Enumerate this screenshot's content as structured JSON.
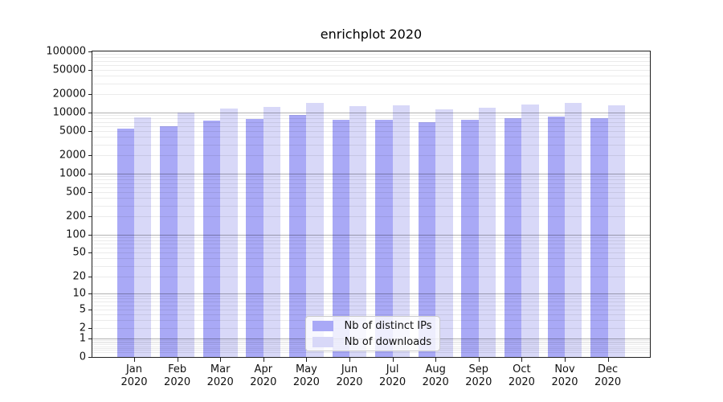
{
  "title": "enrichplot 2020",
  "colors": {
    "distinct_ips_bar": "#a9a9f6",
    "downloads_bar": "#d8d8f8",
    "grid_minor": "rgba(0,0,0,0.08)",
    "grid_major": "rgba(0,0,0,0.30)",
    "spine": "#1f1f1f",
    "legend_border": "#cccccc"
  },
  "legend": {
    "entries": [
      {
        "label": "Nb of distinct IPs",
        "color_key": "distinct_ips_bar"
      },
      {
        "label": "Nb of downloads",
        "color_key": "downloads_bar"
      }
    ]
  },
  "chart_data": {
    "type": "bar",
    "title": "enrichplot 2020",
    "categories": [
      "Jan 2020",
      "Feb 2020",
      "Mar 2020",
      "Apr 2020",
      "May 2020",
      "Jun 2020",
      "Jul 2020",
      "Aug 2020",
      "Sep 2020",
      "Oct 2020",
      "Nov 2020",
      "Dec 2020"
    ],
    "series": [
      {
        "name": "Nb of distinct IPs",
        "values": [
          5400,
          5900,
          7300,
          7850,
          9000,
          7600,
          7700,
          6900,
          7550,
          8200,
          8600,
          8100
        ]
      },
      {
        "name": "Nb of downloads",
        "values": [
          8300,
          9900,
          11500,
          12200,
          14400,
          12700,
          13000,
          11400,
          12100,
          13500,
          14600,
          13300
        ]
      }
    ],
    "xlabel": "",
    "ylabel": "",
    "yscale": "log1p",
    "ylim": [
      0,
      100000
    ],
    "ytick_values": [
      0,
      1,
      2,
      5,
      10,
      20,
      50,
      100,
      200,
      500,
      1000,
      2000,
      5000,
      10000,
      20000,
      50000,
      100000
    ],
    "ytick_labels": [
      "0",
      "1",
      "2",
      "5",
      "10",
      "20",
      "50",
      "100",
      "200",
      "500",
      "1000",
      "2000",
      "5000",
      "10000",
      "20000",
      "50000",
      "100000"
    ],
    "grid": true,
    "grid_on_top": true,
    "legend_position": "lower center"
  }
}
